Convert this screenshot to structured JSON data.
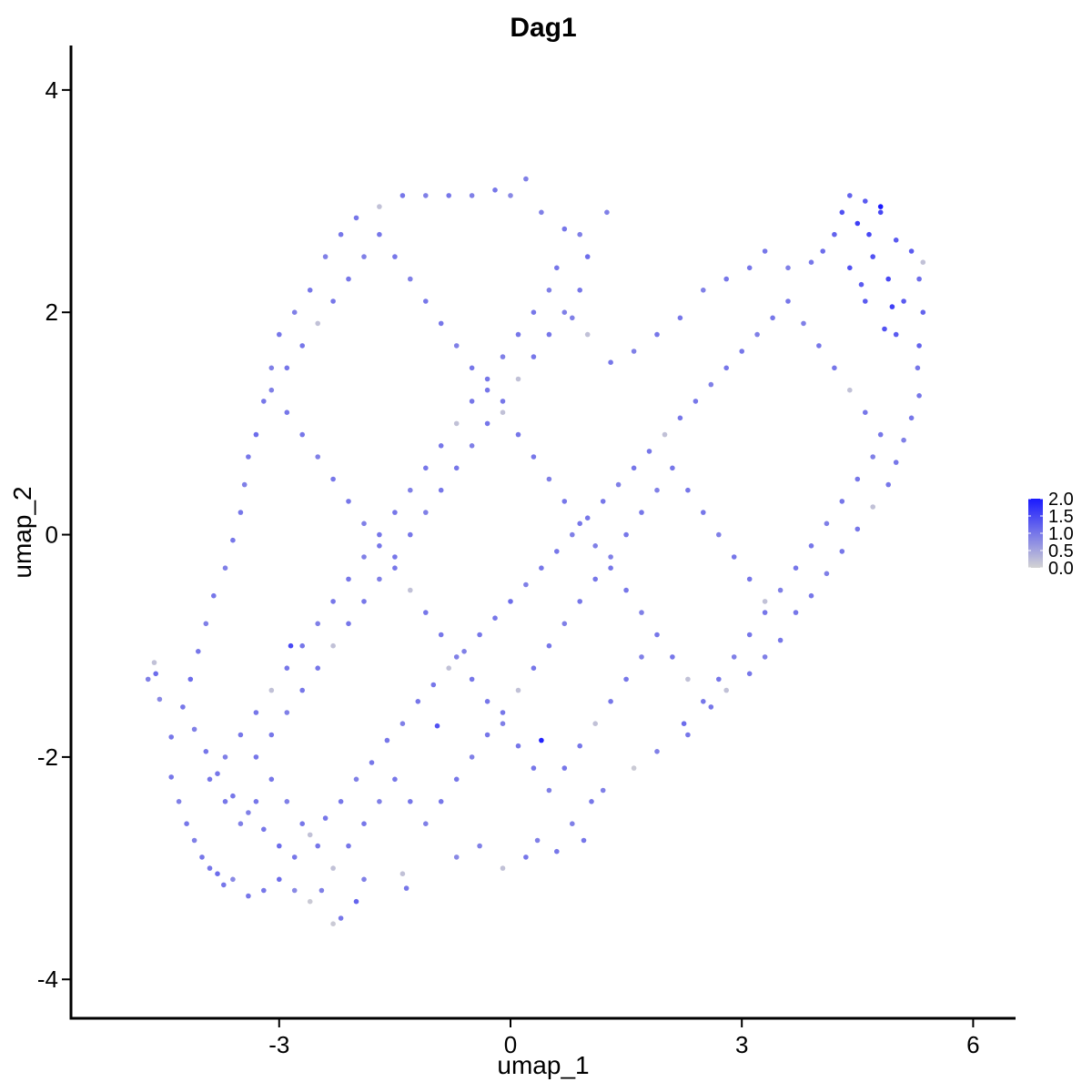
{
  "chart_data": {
    "type": "scatter",
    "title": "Dag1",
    "xlabel": "umap_1",
    "ylabel": "umap_2",
    "xlim": [
      -5.7,
      6.55
    ],
    "ylim": [
      -4.35,
      4.4
    ],
    "x_ticks": [
      {
        "value": -3,
        "label": "-3"
      },
      {
        "value": 0,
        "label": "0"
      },
      {
        "value": 3,
        "label": "3"
      },
      {
        "value": 6,
        "label": "6"
      }
    ],
    "y_ticks": [
      {
        "value": -4,
        "label": "-4"
      },
      {
        "value": -2,
        "label": "-2"
      },
      {
        "value": 0,
        "label": "0"
      },
      {
        "value": 2,
        "label": "2"
      },
      {
        "value": 4,
        "label": "4"
      }
    ],
    "grid": false,
    "legend": {
      "type": "colorbar",
      "placement": "right",
      "range": [
        0,
        2.0
      ],
      "ticks": [
        "0.0",
        "0.5",
        "1.0",
        "1.5",
        "2.0"
      ],
      "low_color": "#d3d3d3",
      "high_color": "#1a1aff"
    },
    "point_color_low": "#d3d3d3",
    "point_color_high": "#1a1aff",
    "points": [
      [
        -4.7,
        -1.3,
        0.9
      ],
      [
        -4.6,
        -1.25,
        1.1
      ],
      [
        -4.62,
        -1.15,
        0.2
      ],
      [
        -4.55,
        -1.48,
        0.8
      ],
      [
        -4.4,
        -1.82,
        1.0
      ],
      [
        -4.4,
        -2.18,
        1.0
      ],
      [
        -4.3,
        -2.4,
        0.9
      ],
      [
        -4.2,
        -2.6,
        1.0
      ],
      [
        -4.1,
        -2.75,
        0.9
      ],
      [
        -4.0,
        -2.9,
        1.0
      ],
      [
        -3.9,
        -3.0,
        1.0
      ],
      [
        -3.8,
        -3.05,
        1.1
      ],
      [
        -3.72,
        -3.15,
        1.0
      ],
      [
        -3.6,
        -3.1,
        0.8
      ],
      [
        -3.4,
        -3.25,
        1.0
      ],
      [
        -3.2,
        -3.2,
        1.0
      ],
      [
        -3.0,
        -3.1,
        1.1
      ],
      [
        -2.8,
        -3.2,
        0.8
      ],
      [
        -2.6,
        -3.3,
        0.1
      ],
      [
        -2.45,
        -3.2,
        0.9
      ],
      [
        -2.3,
        -3.5,
        0.1
      ],
      [
        -2.2,
        -3.45,
        1.0
      ],
      [
        -2.0,
        -3.3,
        1.2
      ],
      [
        -1.9,
        -3.1,
        0.9
      ],
      [
        -1.4,
        -3.05,
        0.2
      ],
      [
        -1.35,
        -3.18,
        1.0
      ],
      [
        -0.7,
        -2.9,
        0.8
      ],
      [
        -0.4,
        -2.8,
        0.9
      ],
      [
        -0.1,
        -3.0,
        0.2
      ],
      [
        0.2,
        -2.9,
        1.0
      ],
      [
        0.35,
        -2.75,
        0.9
      ],
      [
        0.6,
        -2.85,
        1.0
      ],
      [
        0.8,
        -2.6,
        0.9
      ],
      [
        0.95,
        -2.75,
        1.0
      ],
      [
        1.05,
        -2.4,
        1.0
      ],
      [
        1.2,
        -2.3,
        0.9
      ],
      [
        1.6,
        -2.1,
        0.1
      ],
      [
        1.9,
        -1.95,
        0.9
      ],
      [
        2.3,
        -1.8,
        1.0
      ],
      [
        2.6,
        -1.55,
        1.0
      ],
      [
        2.8,
        -1.4,
        0.2
      ],
      [
        3.1,
        -1.25,
        1.0
      ],
      [
        3.3,
        -1.1,
        0.9
      ],
      [
        3.5,
        -0.95,
        1.0
      ],
      [
        3.7,
        -0.7,
        1.0
      ],
      [
        3.9,
        -0.55,
        1.0
      ],
      [
        4.1,
        -0.35,
        0.9
      ],
      [
        4.3,
        -0.15,
        1.0
      ],
      [
        4.5,
        0.05,
        1.0
      ],
      [
        4.7,
        0.25,
        0.2
      ],
      [
        4.9,
        0.45,
        1.0
      ],
      [
        5.0,
        0.65,
        1.0
      ],
      [
        5.1,
        0.85,
        0.9
      ],
      [
        5.2,
        1.05,
        1.0
      ],
      [
        5.3,
        1.25,
        1.0
      ],
      [
        5.28,
        1.5,
        1.0
      ],
      [
        5.3,
        1.7,
        1.2
      ],
      [
        5.35,
        2.0,
        1.2
      ],
      [
        5.3,
        2.3,
        1.1
      ],
      [
        5.35,
        2.45,
        0.2
      ],
      [
        5.2,
        2.55,
        1.3
      ],
      [
        5.0,
        2.65,
        1.3
      ],
      [
        4.8,
        2.9,
        1.5
      ],
      [
        4.6,
        3.0,
        1.3
      ],
      [
        4.4,
        3.05,
        1.2
      ],
      [
        4.3,
        2.9,
        1.4
      ],
      [
        4.2,
        2.7,
        1.2
      ],
      [
        4.05,
        2.55,
        1.1
      ],
      [
        3.9,
        2.45,
        1.0
      ],
      [
        3.6,
        2.4,
        0.9
      ],
      [
        3.3,
        2.55,
        1.0
      ],
      [
        3.1,
        2.4,
        1.0
      ],
      [
        2.8,
        2.3,
        1.0
      ],
      [
        2.5,
        2.2,
        0.9
      ],
      [
        2.2,
        1.95,
        1.0
      ],
      [
        1.9,
        1.8,
        1.0
      ],
      [
        1.6,
        1.65,
        0.9
      ],
      [
        1.3,
        1.55,
        1.0
      ],
      [
        1.0,
        1.8,
        0.2
      ],
      [
        0.8,
        1.95,
        0.9
      ],
      [
        0.6,
        2.4,
        1.0
      ],
      [
        0.9,
        2.7,
        0.9
      ],
      [
        1.25,
        2.9,
        0.9
      ],
      [
        1.0,
        2.5,
        1.1
      ],
      [
        0.7,
        2.75,
        1.0
      ],
      [
        0.4,
        2.9,
        0.9
      ],
      [
        0.2,
        3.2,
        0.9
      ],
      [
        0.0,
        3.05,
        0.8
      ],
      [
        -0.2,
        3.1,
        1.0
      ],
      [
        -0.5,
        3.05,
        0.9
      ],
      [
        -0.8,
        3.05,
        1.0
      ],
      [
        -1.1,
        3.05,
        0.9
      ],
      [
        -1.4,
        3.05,
        1.0
      ],
      [
        -1.7,
        2.95,
        0.2
      ],
      [
        -2.0,
        2.85,
        1.0
      ],
      [
        -2.2,
        2.7,
        1.0
      ],
      [
        -2.4,
        2.5,
        0.9
      ],
      [
        -2.6,
        2.2,
        1.0
      ],
      [
        -2.8,
        2.0,
        0.9
      ],
      [
        -3.0,
        1.8,
        1.0
      ],
      [
        -3.1,
        1.5,
        0.9
      ],
      [
        -3.2,
        1.2,
        1.0
      ],
      [
        -3.3,
        0.9,
        1.1
      ],
      [
        -3.4,
        0.7,
        1.0
      ],
      [
        -3.45,
        0.45,
        0.9
      ],
      [
        -3.5,
        0.2,
        1.0
      ],
      [
        -3.6,
        -0.05,
        1.0
      ],
      [
        -3.7,
        -0.3,
        0.9
      ],
      [
        -3.85,
        -0.55,
        1.0
      ],
      [
        -3.95,
        -0.8,
        0.9
      ],
      [
        -4.05,
        -1.05,
        1.0
      ],
      [
        -4.15,
        -1.3,
        1.1
      ],
      [
        -4.25,
        -1.55,
        1.0
      ],
      [
        -4.1,
        -1.75,
        0.9
      ],
      [
        -3.95,
        -1.95,
        1.0
      ],
      [
        -3.8,
        -2.15,
        1.0
      ],
      [
        -3.6,
        -2.35,
        1.0
      ],
      [
        -3.4,
        -2.5,
        0.9
      ],
      [
        -3.2,
        -2.65,
        1.0
      ],
      [
        -3.0,
        -2.8,
        1.1
      ],
      [
        -2.8,
        -2.9,
        1.0
      ],
      [
        -2.6,
        -2.7,
        0.2
      ],
      [
        -2.4,
        -2.55,
        1.0
      ],
      [
        -2.2,
        -2.4,
        1.0
      ],
      [
        -2.0,
        -2.2,
        0.9
      ],
      [
        -1.8,
        -2.05,
        1.0
      ],
      [
        -1.6,
        -1.85,
        1.0
      ],
      [
        -1.4,
        -1.7,
        0.9
      ],
      [
        -1.2,
        -1.5,
        1.0
      ],
      [
        -1.0,
        -1.35,
        1.0
      ],
      [
        -0.8,
        -1.2,
        0.2
      ],
      [
        -0.6,
        -1.05,
        0.9
      ],
      [
        -0.4,
        -0.9,
        1.0
      ],
      [
        -0.2,
        -0.75,
        1.0
      ],
      [
        0.0,
        -0.6,
        1.1
      ],
      [
        0.2,
        -0.45,
        0.9
      ],
      [
        0.4,
        -0.3,
        1.0
      ],
      [
        0.6,
        -0.15,
        1.0
      ],
      [
        0.8,
        0.0,
        0.9
      ],
      [
        1.0,
        0.15,
        1.0
      ],
      [
        1.2,
        0.3,
        1.0
      ],
      [
        1.4,
        0.45,
        0.9
      ],
      [
        1.6,
        0.6,
        1.0
      ],
      [
        1.8,
        0.75,
        1.0
      ],
      [
        2.0,
        0.9,
        0.2
      ],
      [
        2.2,
        1.05,
        1.0
      ],
      [
        2.4,
        1.2,
        1.0
      ],
      [
        2.6,
        1.35,
        0.9
      ],
      [
        2.8,
        1.5,
        1.0
      ],
      [
        3.0,
        1.65,
        1.0
      ],
      [
        3.2,
        1.8,
        0.9
      ],
      [
        3.4,
        1.95,
        1.0
      ],
      [
        3.6,
        2.1,
        1.0
      ],
      [
        3.8,
        1.9,
        0.9
      ],
      [
        4.0,
        1.7,
        1.0
      ],
      [
        4.2,
        1.5,
        1.0
      ],
      [
        4.4,
        1.3,
        0.2
      ],
      [
        4.6,
        1.1,
        1.0
      ],
      [
        4.8,
        0.9,
        1.0
      ],
      [
        4.7,
        0.7,
        0.9
      ],
      [
        4.5,
        0.5,
        1.0
      ],
      [
        4.3,
        0.3,
        1.0
      ],
      [
        4.1,
        0.1,
        0.9
      ],
      [
        3.9,
        -0.1,
        1.0
      ],
      [
        3.7,
        -0.3,
        1.0
      ],
      [
        3.5,
        -0.5,
        0.9
      ],
      [
        3.3,
        -0.7,
        1.0
      ],
      [
        3.1,
        -0.9,
        1.0
      ],
      [
        2.9,
        -1.1,
        0.9
      ],
      [
        2.7,
        -1.3,
        1.0
      ],
      [
        2.5,
        -1.5,
        1.0
      ],
      [
        2.3,
        -1.3,
        0.2
      ],
      [
        2.1,
        -1.1,
        1.0
      ],
      [
        1.9,
        -0.9,
        1.0
      ],
      [
        1.7,
        -0.7,
        0.9
      ],
      [
        1.5,
        -0.5,
        1.0
      ],
      [
        1.3,
        -0.3,
        1.0
      ],
      [
        1.1,
        -0.1,
        0.9
      ],
      [
        0.9,
        0.1,
        1.0
      ],
      [
        0.7,
        0.3,
        1.0
      ],
      [
        0.5,
        0.5,
        0.9
      ],
      [
        0.3,
        0.7,
        1.0
      ],
      [
        0.1,
        0.9,
        1.0
      ],
      [
        -0.1,
        1.1,
        0.2
      ],
      [
        -0.3,
        1.3,
        1.0
      ],
      [
        -0.5,
        1.5,
        1.0
      ],
      [
        -0.7,
        1.7,
        0.9
      ],
      [
        -0.9,
        1.9,
        1.0
      ],
      [
        -1.1,
        2.1,
        1.0
      ],
      [
        -1.3,
        2.3,
        0.9
      ],
      [
        -1.5,
        2.5,
        1.0
      ],
      [
        -1.7,
        2.7,
        1.0
      ],
      [
        -1.9,
        2.5,
        0.9
      ],
      [
        -2.1,
        2.3,
        1.0
      ],
      [
        -2.3,
        2.1,
        1.0
      ],
      [
        -2.5,
        1.9,
        0.2
      ],
      [
        -2.7,
        1.7,
        1.0
      ],
      [
        -2.9,
        1.5,
        1.0
      ],
      [
        -3.1,
        1.3,
        0.9
      ],
      [
        -2.9,
        1.1,
        1.0
      ],
      [
        -2.7,
        0.9,
        1.0
      ],
      [
        -2.5,
        0.7,
        0.9
      ],
      [
        -2.3,
        0.5,
        1.0
      ],
      [
        -2.1,
        0.3,
        1.0
      ],
      [
        -1.9,
        0.1,
        0.9
      ],
      [
        -1.7,
        -0.1,
        1.0
      ],
      [
        -1.5,
        -0.3,
        1.0
      ],
      [
        -1.3,
        -0.5,
        0.2
      ],
      [
        -1.1,
        -0.7,
        1.0
      ],
      [
        -0.9,
        -0.9,
        1.0
      ],
      [
        -0.7,
        -1.1,
        0.9
      ],
      [
        -0.5,
        -1.3,
        1.0
      ],
      [
        -0.3,
        -1.5,
        1.0
      ],
      [
        -0.1,
        -1.7,
        0.9
      ],
      [
        0.1,
        -1.9,
        1.0
      ],
      [
        0.3,
        -2.1,
        1.0
      ],
      [
        0.5,
        -2.3,
        0.9
      ],
      [
        0.7,
        -2.1,
        1.0
      ],
      [
        0.9,
        -1.9,
        1.0
      ],
      [
        1.1,
        -1.7,
        0.2
      ],
      [
        1.3,
        -1.5,
        1.0
      ],
      [
        1.5,
        -1.3,
        1.0
      ],
      [
        1.7,
        -1.1,
        0.9
      ],
      [
        -3.3,
        -2.0,
        1.0
      ],
      [
        -3.1,
        -1.8,
        1.0
      ],
      [
        -2.9,
        -1.6,
        0.9
      ],
      [
        -2.7,
        -1.4,
        1.0
      ],
      [
        -2.5,
        -1.2,
        1.0
      ],
      [
        -2.3,
        -1.0,
        0.2
      ],
      [
        -2.1,
        -0.8,
        1.0
      ],
      [
        -1.9,
        -0.6,
        1.0
      ],
      [
        -1.7,
        -0.4,
        0.9
      ],
      [
        -1.5,
        -0.2,
        1.0
      ],
      [
        -1.3,
        0.0,
        1.0
      ],
      [
        -1.1,
        0.2,
        0.9
      ],
      [
        -0.9,
        0.4,
        1.0
      ],
      [
        -0.7,
        0.6,
        1.0
      ],
      [
        -0.5,
        0.8,
        0.9
      ],
      [
        -0.3,
        1.0,
        1.0
      ],
      [
        -0.1,
        1.2,
        1.0
      ],
      [
        0.1,
        1.4,
        0.2
      ],
      [
        0.3,
        1.6,
        1.0
      ],
      [
        0.5,
        1.8,
        1.0
      ],
      [
        0.7,
        2.0,
        0.9
      ],
      [
        0.9,
        2.2,
        1.0
      ],
      [
        2.5,
        0.2,
        1.0
      ],
      [
        2.7,
        0.0,
        0.9
      ],
      [
        2.9,
        -0.2,
        1.0
      ],
      [
        3.1,
        -0.4,
        1.0
      ],
      [
        3.3,
        -0.6,
        0.2
      ],
      [
        2.3,
        0.4,
        1.0
      ],
      [
        2.1,
        0.6,
        1.0
      ],
      [
        1.9,
        0.4,
        0.9
      ],
      [
        1.7,
        0.2,
        1.0
      ],
      [
        1.5,
        0.0,
        1.0
      ],
      [
        1.3,
        -0.2,
        0.9
      ],
      [
        1.1,
        -0.4,
        1.0
      ],
      [
        0.9,
        -0.6,
        1.0
      ],
      [
        0.7,
        -0.8,
        0.9
      ],
      [
        0.5,
        -1.0,
        1.0
      ],
      [
        0.3,
        -1.2,
        1.0
      ],
      [
        0.1,
        -1.4,
        0.2
      ],
      [
        -0.1,
        -1.6,
        1.0
      ],
      [
        -0.3,
        -1.8,
        1.0
      ],
      [
        -0.5,
        -2.0,
        0.9
      ],
      [
        -0.7,
        -2.2,
        1.0
      ],
      [
        -0.9,
        -2.4,
        1.0
      ],
      [
        -1.1,
        -2.6,
        0.9
      ],
      [
        -1.3,
        -2.4,
        1.0
      ],
      [
        -1.5,
        -2.2,
        1.0
      ],
      [
        -1.7,
        -2.4,
        0.9
      ],
      [
        -1.9,
        -2.6,
        1.0
      ],
      [
        -2.1,
        -2.8,
        1.0
      ],
      [
        -2.3,
        -3.0,
        0.2
      ],
      [
        -2.5,
        -2.8,
        1.0
      ],
      [
        -2.7,
        -2.6,
        1.0
      ],
      [
        -2.9,
        -2.4,
        0.9
      ],
      [
        -3.1,
        -2.2,
        1.0
      ],
      [
        -3.3,
        -2.4,
        1.0
      ],
      [
        -3.5,
        -2.6,
        0.9
      ],
      [
        -3.7,
        -2.4,
        1.0
      ],
      [
        -3.9,
        -2.2,
        1.0
      ],
      [
        -3.7,
        -2.0,
        0.9
      ],
      [
        -3.5,
        -1.8,
        1.0
      ],
      [
        -3.3,
        -1.6,
        1.0
      ],
      [
        -3.1,
        -1.4,
        0.2
      ],
      [
        -2.9,
        -1.2,
        1.0
      ],
      [
        -2.7,
        -1.0,
        1.0
      ],
      [
        -2.5,
        -0.8,
        0.9
      ],
      [
        -2.3,
        -0.6,
        1.0
      ],
      [
        -2.1,
        -0.4,
        1.0
      ],
      [
        -1.9,
        -0.2,
        0.9
      ],
      [
        -1.7,
        0.0,
        1.0
      ],
      [
        -1.5,
        0.2,
        1.0
      ],
      [
        -1.3,
        0.4,
        0.9
      ],
      [
        -1.1,
        0.6,
        1.0
      ],
      [
        -0.9,
        0.8,
        1.0
      ],
      [
        -0.7,
        1.0,
        0.2
      ],
      [
        -0.5,
        1.2,
        1.0
      ],
      [
        -0.3,
        1.4,
        1.0
      ],
      [
        -0.1,
        1.6,
        0.9
      ],
      [
        0.1,
        1.8,
        1.0
      ],
      [
        0.3,
        2.0,
        1.0
      ],
      [
        0.5,
        2.2,
        0.9
      ],
      [
        4.5,
        2.8,
        1.6
      ],
      [
        4.7,
        2.5,
        1.4
      ],
      [
        4.9,
        2.3,
        1.5
      ],
      [
        5.1,
        2.1,
        1.3
      ],
      [
        4.85,
        1.85,
        1.4
      ],
      [
        4.6,
        2.1,
        1.3
      ],
      [
        4.4,
        2.4,
        1.4
      ],
      [
        4.65,
        2.7,
        1.5
      ],
      [
        5.0,
        1.8,
        1.3
      ],
      [
        4.95,
        2.05,
        1.6
      ],
      [
        4.55,
        2.25,
        1.3
      ],
      [
        0.4,
        -1.85,
        1.9
      ],
      [
        4.8,
        2.95,
        2.0
      ],
      [
        -2.85,
        -1.0,
        1.5
      ],
      [
        -0.95,
        -1.72,
        1.4
      ],
      [
        2.25,
        -1.7,
        1.1
      ]
    ]
  }
}
